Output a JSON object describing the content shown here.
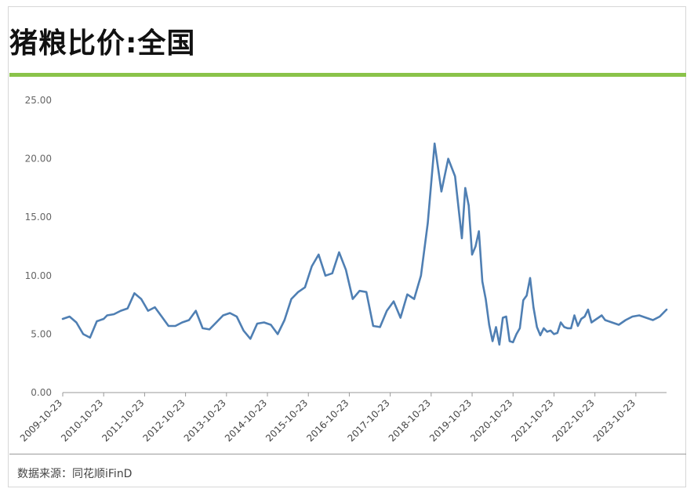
{
  "title": "猪粮比价:全国",
  "source": "数据来源：同花顺iFinD",
  "chart_data": {
    "type": "line",
    "title": "猪粮比价:全国",
    "xlabel": "",
    "ylabel": "",
    "ylim": [
      0,
      25
    ],
    "yticks": [
      "0.00",
      "5.00",
      "10.00",
      "15.00",
      "20.00",
      "25.00"
    ],
    "xticks": [
      "2009-10-23",
      "2010-10-23",
      "2011-10-23",
      "2012-10-23",
      "2013-10-23",
      "2014-10-23",
      "2015-10-23",
      "2016-10-23",
      "2017-10-23",
      "2018-10-23",
      "2019-10-23",
      "2020-10-23",
      "2021-10-23",
      "2022-10-23",
      "2023-10-23"
    ],
    "grid": false,
    "line_color": "#4f7fb3",
    "series": [
      {
        "x": [
          "2009-10",
          "2009-12",
          "2010-02",
          "2010-04",
          "2010-06",
          "2010-08",
          "2010-10",
          "2010-11",
          "2011-01",
          "2011-03",
          "2011-05",
          "2011-07",
          "2011-09",
          "2011-11",
          "2012-01",
          "2012-03",
          "2012-05",
          "2012-07",
          "2012-09",
          "2012-11",
          "2013-01",
          "2013-03",
          "2013-05",
          "2013-07",
          "2013-09",
          "2013-11",
          "2014-01",
          "2014-03",
          "2014-05",
          "2014-07",
          "2014-09",
          "2014-11",
          "2015-01",
          "2015-03",
          "2015-05",
          "2015-07",
          "2015-09",
          "2015-11",
          "2016-01",
          "2016-03",
          "2016-05",
          "2016-07",
          "2016-09",
          "2016-11",
          "2017-01",
          "2017-03",
          "2017-05",
          "2017-07",
          "2017-09",
          "2017-11",
          "2018-01",
          "2018-03",
          "2018-05",
          "2018-07",
          "2018-09",
          "2018-11",
          "2019-01",
          "2019-03",
          "2019-05",
          "2019-07",
          "2019-08",
          "2019-09",
          "2019-10",
          "2019-11",
          "2019-12",
          "2020-01",
          "2020-02",
          "2020-03",
          "2020-04",
          "2020-05",
          "2020-06",
          "2020-07",
          "2020-08",
          "2020-09",
          "2020-10",
          "2020-11",
          "2020-12",
          "2021-01",
          "2021-02",
          "2021-03",
          "2021-04",
          "2021-05",
          "2021-06",
          "2021-07",
          "2021-08",
          "2021-09",
          "2021-10",
          "2021-11",
          "2021-12",
          "2022-01",
          "2022-02",
          "2022-03",
          "2022-04",
          "2022-05",
          "2022-06",
          "2022-07",
          "2022-08",
          "2022-09",
          "2022-10",
          "2022-11",
          "2022-12",
          "2023-01",
          "2023-03",
          "2023-05",
          "2023-07",
          "2023-09",
          "2023-11",
          "2024-01",
          "2024-03",
          "2024-05",
          "2024-07"
        ],
        "y": [
          6.3,
          6.5,
          6.0,
          5.0,
          4.7,
          6.1,
          6.3,
          6.6,
          6.7,
          7.0,
          7.2,
          8.5,
          8.0,
          7.0,
          7.3,
          6.5,
          5.7,
          5.7,
          6.0,
          6.2,
          7.0,
          5.5,
          5.4,
          6.0,
          6.6,
          6.8,
          6.5,
          5.3,
          4.6,
          5.9,
          6.0,
          5.8,
          5.0,
          6.2,
          8.0,
          8.6,
          9.0,
          10.8,
          11.8,
          10.0,
          10.2,
          12.0,
          10.5,
          8.0,
          8.7,
          8.6,
          5.7,
          5.6,
          7.0,
          7.8,
          6.4,
          8.4,
          8.0,
          10.0,
          14.5,
          21.3,
          17.2,
          20.0,
          18.5,
          13.2,
          17.5,
          16.0,
          11.8,
          12.5,
          13.8,
          9.5,
          8.0,
          5.8,
          4.4,
          5.6,
          4.1,
          6.4,
          6.5,
          4.4,
          4.3,
          5.0,
          5.5,
          7.9,
          8.3,
          9.8,
          7.3,
          5.6,
          4.9,
          5.5,
          5.2,
          5.3,
          5.0,
          5.1,
          6.0,
          5.6,
          5.5,
          5.5,
          6.6,
          5.7,
          6.3,
          6.5,
          7.1,
          6.0,
          6.2,
          6.4,
          6.6,
          6.2,
          6.0,
          5.8,
          6.2,
          6.5,
          6.6,
          6.4,
          6.2,
          6.5,
          7.1
        ]
      }
    ]
  }
}
